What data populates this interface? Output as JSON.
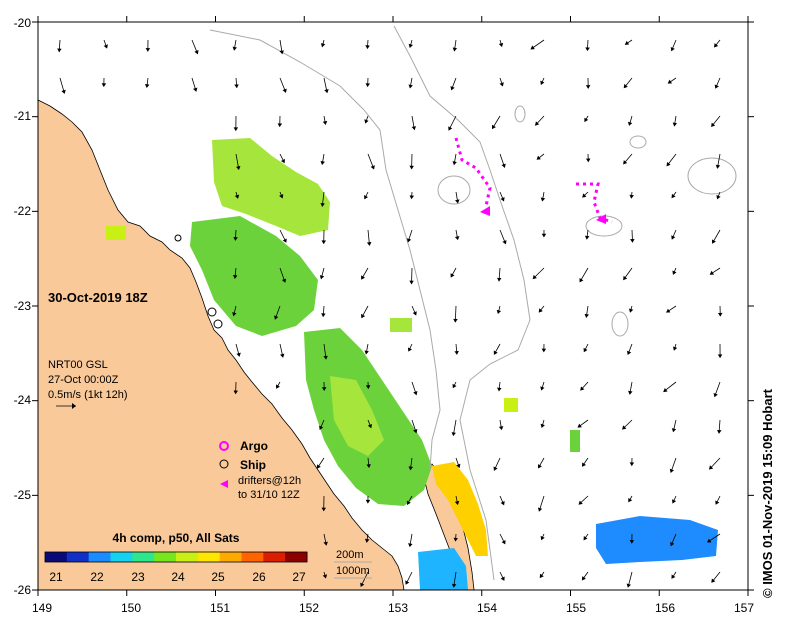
{
  "map": {
    "date_label": "30-Oct-2019 18Z",
    "credit": "© IMOS 01-Nov-2019 15:09 Hobart",
    "lon_ticks": [
      "149",
      "150",
      "151",
      "152",
      "153",
      "154",
      "155",
      "156",
      "157"
    ],
    "lat_ticks": [
      "-20",
      "-21",
      "-22",
      "-23",
      "-24",
      "-25",
      "-26"
    ],
    "lon_range": [
      149,
      157
    ],
    "lat_range": [
      -26,
      -20
    ]
  },
  "current_info": {
    "product": "NRT00 GSL",
    "time": "27-Oct 00:00Z",
    "scale": "0.5m/s (1kt 12h)"
  },
  "legend": {
    "argo": "Argo",
    "ship": "Ship",
    "drifters_line1": "drifters@12h",
    "drifters_line2": "to 31/10 12Z",
    "argo_color": "#ff00ff",
    "drifter_color": "#ff00ff"
  },
  "colorbar": {
    "title": "4h comp, p50, All Sats",
    "ticks": [
      "21",
      "22",
      "23",
      "24",
      "25",
      "26",
      "27"
    ],
    "colors": [
      "#0a0a78",
      "#1030c8",
      "#1a8cff",
      "#14d2f0",
      "#2ee68c",
      "#78e61e",
      "#c8f014",
      "#ffe600",
      "#ffaa00",
      "#ff6400",
      "#dc1e00",
      "#8c0000"
    ]
  },
  "isobaths": {
    "label1": "200m",
    "label2": "1000m"
  },
  "colors": {
    "land": "#f9c999",
    "ocean": "#ffffff",
    "coast": "#000000",
    "isobath": "#aaaaaa",
    "sst_green": "#6cd23c",
    "sst_lightgreen": "#a6e63c",
    "sst_yellow": "#ffd000",
    "sst_blue": "#1e8cff"
  }
}
